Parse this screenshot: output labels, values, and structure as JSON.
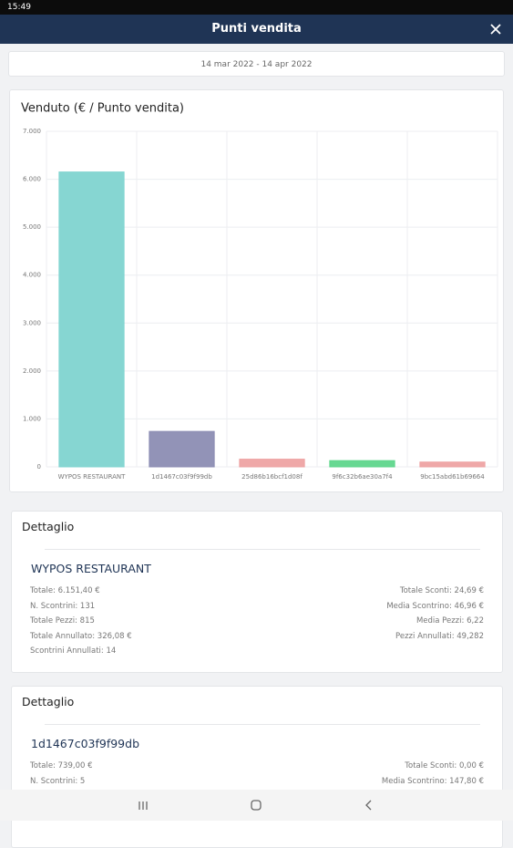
{
  "status": {
    "time": "15:49"
  },
  "header": {
    "title": "Punti vendita"
  },
  "date_range": "14 mar 2022 - 14 apr 2022",
  "chart_data": {
    "type": "bar",
    "title": "Venduto (€ / Punto vendita)",
    "categories": [
      "WYPOS RESTAURANT",
      "1d1467c03f9f99db",
      "25d86b16bcf1d08f",
      "9f6c32b6ae30a7f4",
      "9bc15abd61b69664"
    ],
    "values": [
      6151.4,
      739,
      160,
      130,
      100
    ],
    "colors": [
      "#80d4d0",
      "#8c8db3",
      "#eea3a3",
      "#5fd68c",
      "#eea3a3"
    ],
    "ylim": [
      0,
      7000
    ],
    "yticks": [
      0,
      {
        "value": 1000,
        "label": "1.000"
      },
      {
        "value": 2000,
        "label": "2.000"
      },
      {
        "value": 3000,
        "label": "3.000"
      },
      {
        "value": 4000,
        "label": "4.000"
      },
      {
        "value": 5000,
        "label": "5.000"
      },
      {
        "value": 6000,
        "label": "6.000"
      },
      {
        "value": 7000,
        "label": "7.000"
      }
    ],
    "grid": true
  },
  "details": [
    {
      "heading": "Dettaglio",
      "name": "WYPOS RESTAURANT",
      "left": [
        "Totale: 6.151,40 €",
        "N. Scontrini: 131",
        "Totale Pezzi: 815",
        "Totale Annullato: 326,08 €",
        "Scontrini Annullati: 14"
      ],
      "right": [
        "Totale Sconti: 24,69 €",
        "Media Scontrino: 46,96 €",
        "Media Pezzi: 6,22",
        "Pezzi Annullati: 49,282"
      ]
    },
    {
      "heading": "Dettaglio",
      "name": "1d1467c03f9f99db",
      "left": [
        "Totale: 739,00 €",
        "N. Scontrini: 5"
      ],
      "right": [
        "Totale Sconti: 0,00 €",
        "Media Scontrino: 147,80 €"
      ]
    }
  ]
}
